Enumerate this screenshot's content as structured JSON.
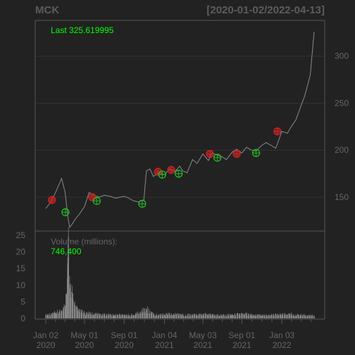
{
  "chart_data": {
    "type": "line",
    "title": "MCK",
    "date_range": "[2020-01-02/2022-04-13]",
    "last_label": "Last 325.619995",
    "price_axis": {
      "ticks": [
        150,
        200,
        250,
        300
      ],
      "ylim": [
        114,
        338
      ],
      "grid": true,
      "position": "right"
    },
    "volume_axis": {
      "label": "Volume (millions):",
      "last_value": "746,400",
      "ticks": [
        0,
        5,
        10,
        15,
        20,
        25
      ],
      "ylim": [
        0,
        25
      ],
      "position": "left"
    },
    "x_ticks": [
      {
        "month": "Jan 02",
        "year": "2020",
        "date": "2020-01-02"
      },
      {
        "month": "May 01",
        "year": "2020",
        "date": "2020-05-01"
      },
      {
        "month": "Sep 01",
        "year": "2020",
        "date": "2020-09-01"
      },
      {
        "month": "Jan 04",
        "year": "2021",
        "date": "2021-01-04"
      },
      {
        "month": "May 03",
        "year": "2021",
        "date": "2021-05-03"
      },
      {
        "month": "Sep 01",
        "year": "2021",
        "date": "2021-09-01"
      },
      {
        "month": "Jan 03",
        "year": "2022",
        "date": "2022-01-03"
      }
    ],
    "price_series": {
      "name": "Close",
      "x": [
        "2020-01-02",
        "2020-01-20",
        "2020-02-05",
        "2020-02-20",
        "2020-03-02",
        "2020-03-10",
        "2020-03-16",
        "2020-03-23",
        "2020-04-01",
        "2020-04-15",
        "2020-05-01",
        "2020-05-15",
        "2020-06-01",
        "2020-06-15",
        "2020-07-01",
        "2020-07-20",
        "2020-08-05",
        "2020-08-20",
        "2020-09-01",
        "2020-09-15",
        "2020-10-01",
        "2020-10-15",
        "2020-11-01",
        "2020-11-09",
        "2020-11-20",
        "2020-12-01",
        "2020-12-15",
        "2021-01-04",
        "2021-01-20",
        "2021-02-05",
        "2021-02-20",
        "2021-03-01",
        "2021-03-15",
        "2021-04-01",
        "2021-04-15",
        "2021-05-03",
        "2021-05-20",
        "2021-06-01",
        "2021-06-15",
        "2021-07-01",
        "2021-07-15",
        "2021-08-02",
        "2021-08-16",
        "2021-09-01",
        "2021-09-15",
        "2021-10-01",
        "2021-10-15",
        "2021-11-01",
        "2021-11-15",
        "2021-12-01",
        "2021-12-15",
        "2022-01-03",
        "2022-01-20",
        "2022-02-01",
        "2022-02-15",
        "2022-03-01",
        "2022-03-15",
        "2022-04-01",
        "2022-04-13"
      ],
      "y": [
        138,
        146,
        158,
        170,
        155,
        130,
        118,
        121,
        126,
        132,
        140,
        155,
        152,
        150,
        152,
        151,
        149,
        150,
        151,
        149,
        146,
        145,
        147,
        178,
        180,
        172,
        176,
        174,
        180,
        177,
        183,
        178,
        176,
        190,
        186,
        196,
        189,
        197,
        195,
        193,
        190,
        198,
        201,
        197,
        203,
        200,
        199,
        205,
        208,
        205,
        202,
        220,
        218,
        225,
        232,
        245,
        258,
        280,
        326
      ]
    },
    "buy_markers": [
      {
        "date": "2020-03-03",
        "price": 134
      },
      {
        "date": "2020-06-08",
        "price": 146
      },
      {
        "date": "2020-10-27",
        "price": 143
      },
      {
        "date": "2020-12-28",
        "price": 174
      },
      {
        "date": "2021-02-17",
        "price": 175
      },
      {
        "date": "2021-06-17",
        "price": 192
      },
      {
        "date": "2021-10-15",
        "price": 197
      }
    ],
    "sell_markers": [
      {
        "date": "2020-01-21",
        "price": 147
      },
      {
        "date": "2020-05-25",
        "price": 150
      },
      {
        "date": "2020-12-15",
        "price": 177
      },
      {
        "date": "2021-01-25",
        "price": 179
      },
      {
        "date": "2021-05-25",
        "price": 196
      },
      {
        "date": "2021-08-16",
        "price": 196
      },
      {
        "date": "2021-12-20",
        "price": 220
      }
    ],
    "volume_series": {
      "name": "Volume",
      "x": [
        "2020-01-02",
        "2020-02-01",
        "2020-02-20",
        "2020-03-02",
        "2020-03-06",
        "2020-03-09",
        "2020-03-10",
        "2020-03-12",
        "2020-03-16",
        "2020-03-18",
        "2020-03-23",
        "2020-03-26",
        "2020-04-01",
        "2020-04-10",
        "2020-05-01",
        "2020-06-01",
        "2020-07-01",
        "2020-08-01",
        "2020-09-01",
        "2020-10-01",
        "2020-11-09",
        "2020-12-01",
        "2021-01-04",
        "2021-02-01",
        "2021-03-01",
        "2021-04-01",
        "2021-05-03",
        "2021-06-01",
        "2021-07-01",
        "2021-08-01",
        "2021-09-01",
        "2021-10-01",
        "2021-11-01",
        "2021-12-01",
        "2022-01-03",
        "2022-02-01",
        "2022-03-01",
        "2022-04-13"
      ],
      "y": [
        1.0,
        1.6,
        2.4,
        3.8,
        7.5,
        12.0,
        16.5,
        24.5,
        10.0,
        9.0,
        8.0,
        5.5,
        4.0,
        2.2,
        1.6,
        1.3,
        1.1,
        1.0,
        1.1,
        1.0,
        2.8,
        1.2,
        1.1,
        1.3,
        1.1,
        1.0,
        1.2,
        1.0,
        0.9,
        1.0,
        1.4,
        1.0,
        0.9,
        1.0,
        1.1,
        1.2,
        1.0,
        0.75
      ]
    },
    "colors": {
      "background": "#222222",
      "price_line": "#8a8a8a",
      "last_label": "#00ff00",
      "buy": "#22bb22",
      "sell": "#cc2222",
      "grid": "#333333",
      "axis_text": "#666666",
      "title_text": "#5c5c5c",
      "volume_bar": "#8a8a8a"
    }
  }
}
